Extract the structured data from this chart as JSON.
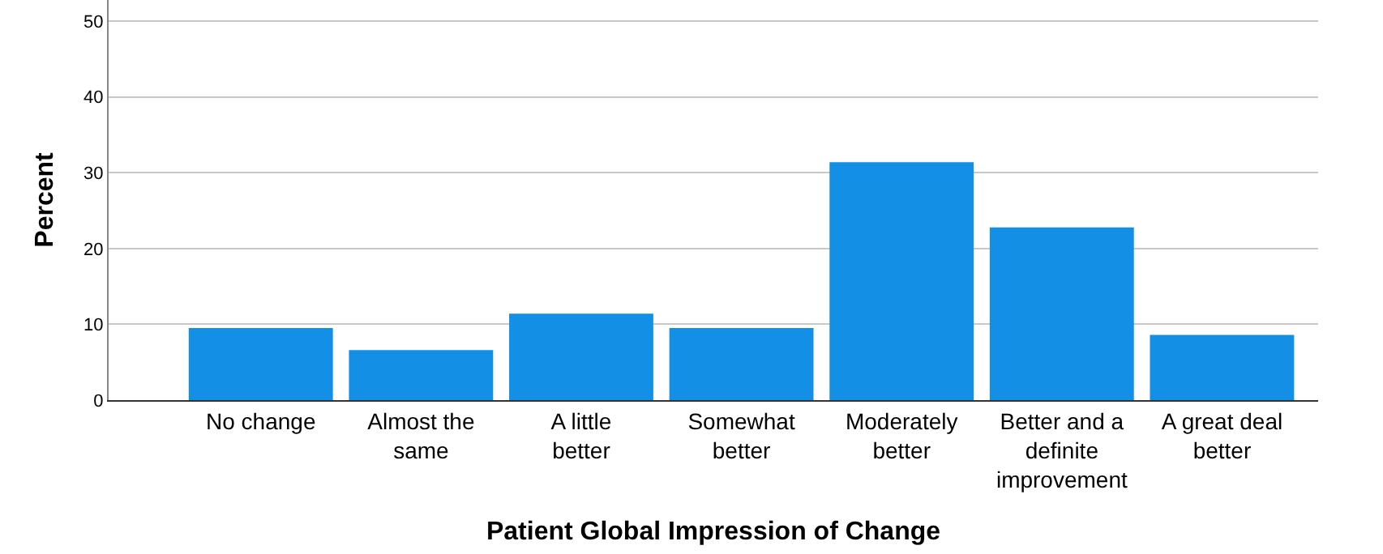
{
  "chart_data": {
    "type": "bar",
    "xlabel": "Patient Global Impression of Change",
    "ylabel": "Percent",
    "categories": [
      "No change",
      "Almost the same",
      "A little better",
      "Somewhat better",
      "Moderately better",
      "Better and a definite improvement",
      "A great deal better"
    ],
    "values": [
      9.5,
      6.6,
      11.4,
      9.5,
      31.4,
      22.8,
      8.6
    ],
    "color": "#1390e6",
    "ylim": [
      0,
      52.8
    ],
    "yticks": [
      0,
      10,
      20,
      30,
      40,
      50
    ],
    "grid": "y"
  }
}
